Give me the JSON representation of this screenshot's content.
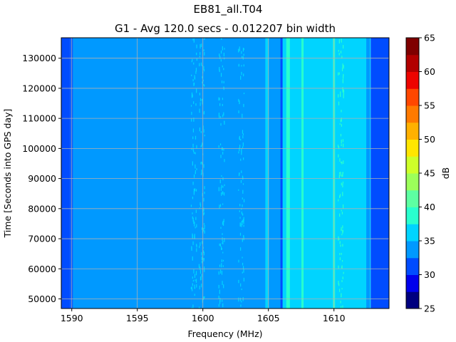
{
  "chart_data": {
    "type": "heatmap",
    "suptitle": "EB81_all.T04",
    "title": "G1 - Avg 120.0 secs - 0.012207 bin width",
    "xlabel": "Frequency (MHz)",
    "ylabel": "Time [Seconds into GPS day]",
    "colorbar_label": "dB",
    "xlim": [
      1589.2,
      1614.2
    ],
    "ylim": [
      46800,
      136800
    ],
    "xticks": [
      1590,
      1595,
      1600,
      1605,
      1610
    ],
    "yticks": [
      50000,
      60000,
      70000,
      80000,
      90000,
      100000,
      110000,
      120000,
      130000
    ],
    "grid": true,
    "colorbar": {
      "levels": [
        25,
        27.5,
        30,
        32.5,
        35,
        37.5,
        40,
        42.5,
        45,
        47.5,
        50,
        52.5,
        55,
        57.5,
        60,
        62.5,
        65
      ],
      "ticks": [
        25,
        30,
        35,
        40,
        45,
        50,
        55,
        60,
        65
      ],
      "colors": [
        "#00007f",
        "#0000ed",
        "#004cff",
        "#0099ff",
        "#00d4ff",
        "#29ffce",
        "#5dffa2",
        "#9cff5a",
        "#ceff29",
        "#ffe600",
        "#ffb100",
        "#ff7a00",
        "#ff4700",
        "#ed0400",
        "#b20000",
        "#7f0000"
      ]
    },
    "frequency_bands": [
      {
        "from": 1589.2,
        "to": 1589.9,
        "level_db": 30
      },
      {
        "from": 1589.9,
        "to": 1606.0,
        "level_db": 32.5
      },
      {
        "from": 1606.0,
        "to": 1612.8,
        "level_db": 35
      },
      {
        "from": 1612.8,
        "to": 1614.2,
        "level_db": 30
      }
    ],
    "features": [
      {
        "freq_mhz": 1590.0,
        "level_db": 30,
        "kind": "narrow-line"
      },
      {
        "freq_mhz": 1599.3,
        "level_db": 35,
        "kind": "speckle"
      },
      {
        "freq_mhz": 1599.9,
        "level_db": 35,
        "kind": "speckle"
      },
      {
        "freq_mhz": 1601.4,
        "level_db": 35,
        "kind": "speckle"
      },
      {
        "freq_mhz": 1602.9,
        "level_db": 35,
        "kind": "speckle"
      },
      {
        "freq_mhz": 1604.9,
        "level_db": 35,
        "kind": "band"
      },
      {
        "freq_mhz": 1606.0,
        "level_db": 30,
        "kind": "narrow-line"
      },
      {
        "freq_mhz": 1606.5,
        "level_db": 37.5,
        "kind": "band"
      },
      {
        "freq_mhz": 1607.6,
        "level_db": 37.5,
        "kind": "narrow-line"
      },
      {
        "freq_mhz": 1610.0,
        "level_db": 37.5,
        "kind": "narrow-line"
      },
      {
        "freq_mhz": 1610.5,
        "level_db": 37.5,
        "kind": "speckle"
      },
      {
        "freq_mhz": 1612.6,
        "level_db": 32.5,
        "kind": "band"
      }
    ]
  }
}
